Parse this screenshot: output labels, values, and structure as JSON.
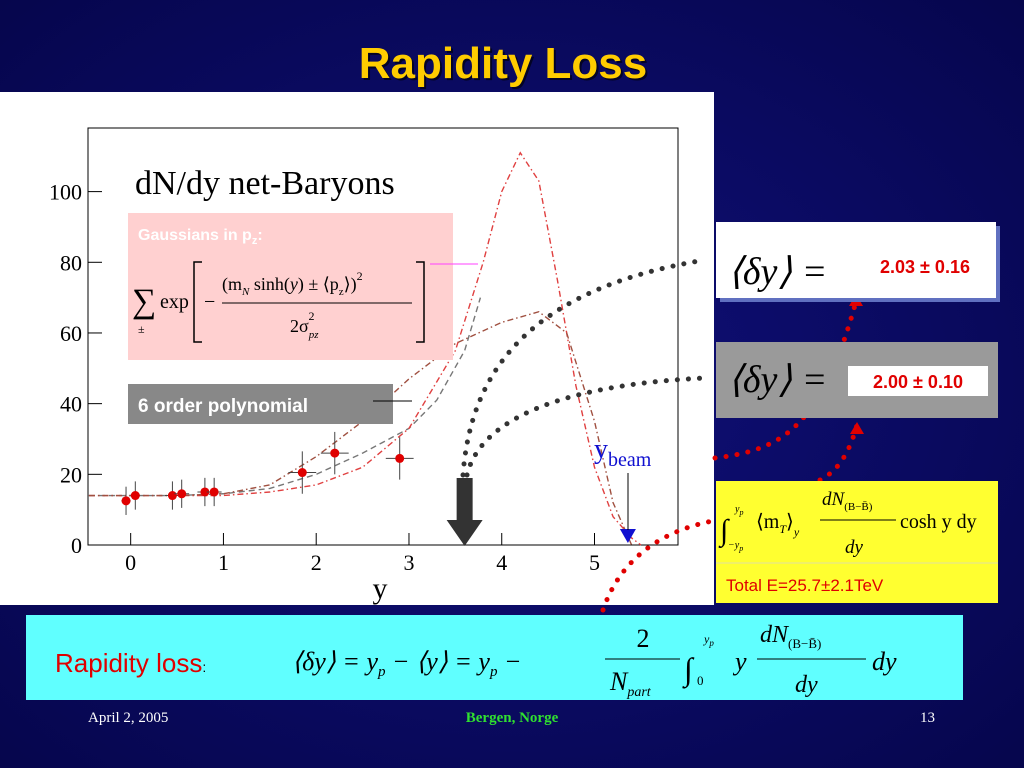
{
  "title": "Rapidity Loss",
  "chart_data": {
    "type": "scatter",
    "title": "dN/dy net-Baryons",
    "x_label": "y",
    "xlim": [
      -0.46,
      5.9
    ],
    "ylim": [
      0,
      118
    ],
    "xticks": [
      0,
      1,
      2,
      3,
      4,
      5
    ],
    "yticks": [
      0,
      20,
      40,
      60,
      80,
      100
    ],
    "series": [
      {
        "type": "scatter",
        "color": "#e00000",
        "x": [
          -0.05,
          0.05,
          0.45,
          0.55,
          0.8,
          0.9,
          1.85,
          2.2,
          2.9
        ],
        "values": [
          12.5,
          14,
          14,
          14.5,
          15,
          15,
          20.5,
          26,
          24.5
        ],
        "errors": [
          4,
          4,
          4,
          4,
          4,
          4,
          6,
          6,
          6
        ],
        "xerrors": [
          0.05,
          0.05,
          0.08,
          0.08,
          0.08,
          0.08,
          0.15,
          0.15,
          0.15
        ]
      },
      {
        "type": "line",
        "color": "#777777",
        "line_style": "dashed",
        "x": [
          -0.45,
          0,
          0.5,
          1,
          1.5,
          2,
          2.5,
          3,
          3.3,
          3.6,
          3.77
        ],
        "values": [
          14,
          14,
          14,
          14.5,
          16,
          20,
          26,
          33,
          41,
          55,
          70
        ]
      },
      {
        "type": "line",
        "color": "#e04040",
        "line_style": "dashdot",
        "x": [
          -0.45,
          0.5,
          1,
          1.5,
          2,
          2.5,
          3,
          3.5,
          3.8,
          4,
          4.2,
          4.4,
          4.6,
          4.8,
          5,
          5.2,
          5.4,
          5.5
        ],
        "values": [
          14,
          14,
          14,
          15,
          17,
          22,
          33,
          55,
          80,
          100,
          111,
          103,
          75,
          45,
          22,
          8,
          2,
          0
        ]
      },
      {
        "type": "line",
        "color": "#a05040",
        "line_style": "dashdot",
        "x": [
          -0.45,
          0.5,
          1,
          1.5,
          2,
          2.5,
          3,
          3.5,
          4,
          4.4,
          4.7,
          5,
          5.2,
          5.4
        ],
        "values": [
          14,
          14,
          14.5,
          17,
          25,
          35,
          47,
          57,
          63,
          66,
          60,
          35,
          12,
          0
        ]
      }
    ],
    "beam_y": 5.36,
    "mean_y": 3.6
  },
  "gauss_box": {
    "label": "Gaussians in p",
    "label_sub": "z",
    "label_end": ":",
    "sum": "∑",
    "sum_sub": "±",
    "exp": "exp",
    "minus": "−",
    "num": [
      "(m",
      "N",
      " sinh(",
      "y",
      ") ± ⟨p",
      "z",
      "⟩)",
      "2"
    ],
    "den": [
      "2σ",
      "pz",
      "2"
    ]
  },
  "polynomial_label": "6 order polynomial",
  "beam_label": {
    "text": "y",
    "sub": "beam"
  },
  "results": [
    {
      "lhs": "⟨δy⟩ =",
      "value": "2.03 ± 0.16"
    },
    {
      "lhs": "⟨δy⟩ =",
      "value": "2.00 ± 0.10"
    }
  ],
  "energy_box": {
    "integral": "∫",
    "upper": [
      "y",
      "p"
    ],
    "lower": [
      "−y",
      "p"
    ],
    "mt": [
      "⟨m",
      "T",
      "⟩",
      "y"
    ],
    "num": [
      "dN",
      "(B−B̄)"
    ],
    "den": "dy",
    "tail": "cosh y dy",
    "total": "Total E=25.7±2.1TeV"
  },
  "loss_box": {
    "label": "Rapidity loss",
    "colon": ":",
    "eq": [
      "⟨δy⟩ = y",
      "p",
      " − ⟨y⟩ = y",
      "p",
      " − "
    ],
    "frac_num": "2",
    "frac_den": [
      "N",
      "part"
    ],
    "integral": "∫",
    "upper": [
      "y",
      "p"
    ],
    "lower": "0",
    "y": "y",
    "dn": [
      "dN",
      "(B−B̄)"
    ],
    "dy": "dy",
    "tail": "dy"
  },
  "footer": {
    "date": "April 2, 2005",
    "place": "Bergen, Norge",
    "page": "13"
  }
}
